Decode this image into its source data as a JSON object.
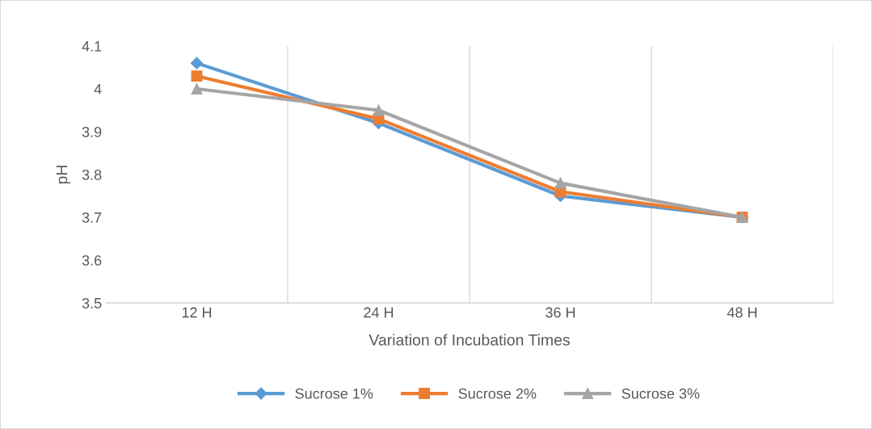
{
  "chart_data": {
    "type": "line",
    "xlabel": "Variation of Incubation Times",
    "ylabel": "pH",
    "categories": [
      "12 H",
      "24 H",
      "36 H",
      "48 H"
    ],
    "series": [
      {
        "name": "Sucrose 1%",
        "color": "#5b9bd5",
        "marker": "diamond",
        "values": [
          4.06,
          3.92,
          3.75,
          3.7
        ]
      },
      {
        "name": "Sucrose 2%",
        "color": "#ed7d31",
        "marker": "square",
        "values": [
          4.03,
          3.93,
          3.76,
          3.7
        ]
      },
      {
        "name": "Sucrose 3%",
        "color": "#a5a5a5",
        "marker": "triangle",
        "values": [
          4.0,
          3.95,
          3.78,
          3.7
        ]
      }
    ],
    "ylim": [
      3.5,
      4.1
    ],
    "yticks": [
      3.5,
      3.6,
      3.7,
      3.8,
      3.9,
      4,
      4.1
    ],
    "grid": "x",
    "legend": "bottom",
    "line_style": "solid"
  }
}
